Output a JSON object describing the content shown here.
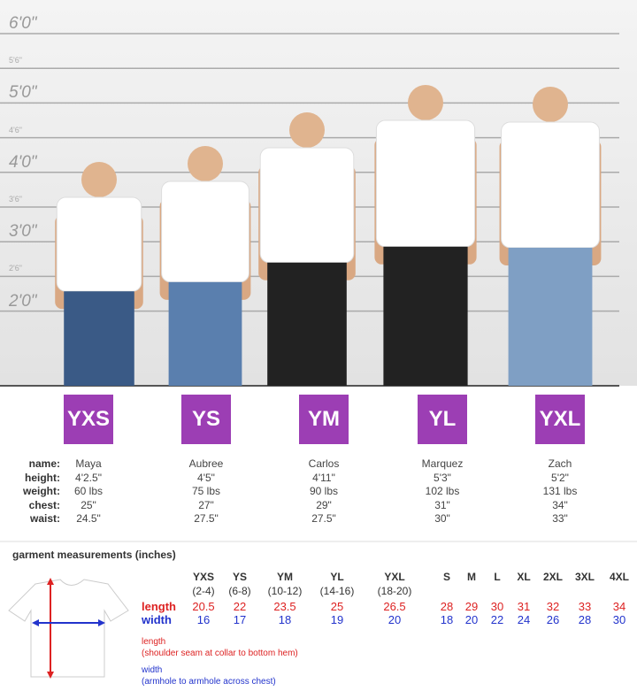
{
  "height_marks": [
    "6'0\"",
    "5'6\"",
    "5'0\"",
    "4'6\"",
    "4'0\"",
    "3'6\"",
    "3'0\"",
    "2'6\"",
    "2'0\""
  ],
  "profile_labels": [
    "name:",
    "height:",
    "weight:",
    "chest:",
    "waist:"
  ],
  "kids": [
    {
      "size": "YXS",
      "name": "Maya",
      "height": "4'2.5\"",
      "weight": "60 lbs",
      "chest": "25\"",
      "waist": "24.5\""
    },
    {
      "size": "YS",
      "name": "Aubree",
      "height": "4'5\"",
      "weight": "75 lbs",
      "chest": "27\"",
      "waist": "27.5\""
    },
    {
      "size": "YM",
      "name": "Carlos",
      "height": "4'11\"",
      "weight": "90 lbs",
      "chest": "29\"",
      "waist": "27.5\""
    },
    {
      "size": "YL",
      "name": "Marquez",
      "height": "5'3\"",
      "weight": "102 lbs",
      "chest": "31\"",
      "waist": "30\""
    },
    {
      "size": "YXL",
      "name": "Zach",
      "height": "5'2\"",
      "weight": "131 lbs",
      "chest": "34\"",
      "waist": "33\""
    }
  ],
  "garment": {
    "title": "garment measurements (inches)",
    "columns": [
      {
        "size": "YXS",
        "range": "(2-4)"
      },
      {
        "size": "YS",
        "range": "(6-8)"
      },
      {
        "size": "YM",
        "range": "(10-12)"
      },
      {
        "size": "YL",
        "range": "(14-16)"
      },
      {
        "size": "YXL",
        "range": "(18-20)"
      },
      {
        "size": "S"
      },
      {
        "size": "M"
      },
      {
        "size": "L"
      },
      {
        "size": "XL"
      },
      {
        "size": "2XL"
      },
      {
        "size": "3XL"
      },
      {
        "size": "4XL"
      }
    ],
    "rows": [
      {
        "label": "length",
        "values": [
          20.5,
          22,
          23.5,
          25,
          26.5,
          28,
          29,
          30,
          31,
          32,
          33,
          34
        ]
      },
      {
        "label": "width",
        "values": [
          16,
          17,
          18,
          19,
          20,
          18,
          20,
          22,
          24,
          26,
          28,
          30
        ]
      }
    ],
    "notes": [
      {
        "label": "length",
        "text": "(shoulder seam at collar to bottom hem)"
      },
      {
        "label": "width",
        "text": "(armhole to armhole across chest)"
      }
    ]
  }
}
